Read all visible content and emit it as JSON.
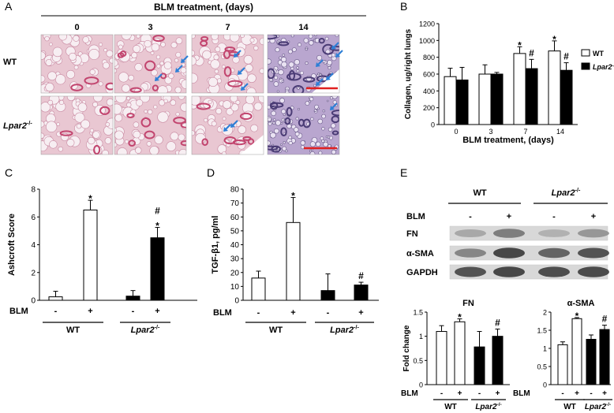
{
  "panel_labels": {
    "a": "A",
    "b": "B",
    "c": "C",
    "d": "D",
    "e": "E"
  },
  "panel_a": {
    "title": "BLM treatment, (days)",
    "days": [
      "0",
      "3",
      "7",
      "14"
    ],
    "rows": [
      "WT",
      "Lpar2"
    ],
    "knockout_superscript": "-/-"
  },
  "panel_e": {
    "groups": [
      "WT",
      "Lpar2"
    ],
    "knockout_superscript": "-/-",
    "blm_label": "BLM",
    "blm_signs": [
      "-",
      "+",
      "-",
      "+"
    ],
    "bands": [
      "FN",
      "α-SMA",
      "GAPDH"
    ]
  },
  "colors": {
    "wt": "#ffffff",
    "ko": "#000000",
    "tissue": "#e9c7d2",
    "stain": "#c2456f",
    "arrow": "#2e7fd6",
    "scale": "#e02020"
  },
  "chart_data": [
    {
      "id": "B",
      "type": "bar",
      "title": "",
      "xlabel": "BLM treatment, (days)",
      "ylabel": "Collagen, ug/right lungs",
      "categories": [
        "0",
        "3",
        "7",
        "14"
      ],
      "ylim": [
        0,
        1200
      ],
      "yticks": [
        "0",
        "200",
        "400",
        "600",
        "800",
        "1000",
        "1200"
      ],
      "legend_position": "right",
      "series": [
        {
          "name": "WT",
          "values": [
            570,
            600,
            845,
            875
          ],
          "errors": [
            100,
            110,
            80,
            120
          ],
          "marks": [
            "",
            "",
            "*",
            "*"
          ]
        },
        {
          "name": "Lpar2-/-",
          "values": [
            530,
            600,
            665,
            645
          ],
          "errors": [
            150,
            20,
            110,
            90
          ],
          "marks": [
            "",
            "",
            "#",
            "#"
          ]
        }
      ]
    },
    {
      "id": "C",
      "type": "bar",
      "ylabel": "Ashcroft Score",
      "ylim": [
        0,
        8
      ],
      "yticks": [
        "0",
        "2",
        "4",
        "6",
        "8"
      ],
      "x_row_label": "BLM",
      "signs": [
        "-",
        "+",
        "-",
        "+"
      ],
      "groups": [
        "WT",
        "Lpar2-/-"
      ],
      "values": [
        0.25,
        6.5,
        0.3,
        4.5
      ],
      "errors": [
        0.4,
        0.7,
        0.4,
        0.75
      ],
      "marks": [
        "",
        "*",
        "",
        "*#"
      ],
      "fills": [
        "wt",
        "wt",
        "ko",
        "ko"
      ]
    },
    {
      "id": "D",
      "type": "bar",
      "ylabel": "TGF-β1, pg/ml",
      "ylim": [
        0,
        80
      ],
      "yticks": [
        "0",
        "10",
        "20",
        "30",
        "40",
        "50",
        "60",
        "70",
        "80"
      ],
      "x_row_label": "BLM",
      "signs": [
        "-",
        "+",
        "-",
        "+"
      ],
      "groups": [
        "WT",
        "Lpar2-/-"
      ],
      "values": [
        16,
        56,
        7,
        11
      ],
      "errors": [
        5,
        18,
        12,
        2
      ],
      "marks": [
        "",
        "*",
        "",
        "#"
      ],
      "fills": [
        "wt",
        "wt",
        "ko",
        "ko"
      ]
    },
    {
      "id": "E-FN",
      "type": "bar",
      "title": "FN",
      "ylabel": "Fold change",
      "ylim": [
        0,
        1.5
      ],
      "yticks": [
        "0",
        "0.5",
        "1",
        "1.5"
      ],
      "x_row_label": "BLM",
      "signs": [
        "-",
        "+",
        "-",
        "+"
      ],
      "groups": [
        "WT",
        "Lpar2-/-"
      ],
      "values": [
        1.1,
        1.3,
        0.78,
        1.0
      ],
      "errors": [
        0.12,
        0.06,
        0.32,
        0.15
      ],
      "marks": [
        "",
        "*",
        "",
        "#"
      ],
      "fills": [
        "wt",
        "wt",
        "ko",
        "ko"
      ]
    },
    {
      "id": "E-SMA",
      "type": "bar",
      "title": "α-SMA",
      "ylabel": "",
      "ylim": [
        0,
        2
      ],
      "yticks": [
        "0",
        "0.5",
        "1",
        "1.5",
        "2"
      ],
      "x_row_label": "BLM",
      "signs": [
        "-",
        "+",
        "-",
        "+"
      ],
      "groups": [
        "WT",
        "Lpar2-/-"
      ],
      "values": [
        1.1,
        1.82,
        1.25,
        1.52
      ],
      "errors": [
        0.08,
        0.03,
        0.12,
        0.12
      ],
      "marks": [
        "",
        "*",
        "",
        "#"
      ],
      "fills": [
        "wt",
        "wt",
        "ko",
        "ko"
      ]
    }
  ]
}
